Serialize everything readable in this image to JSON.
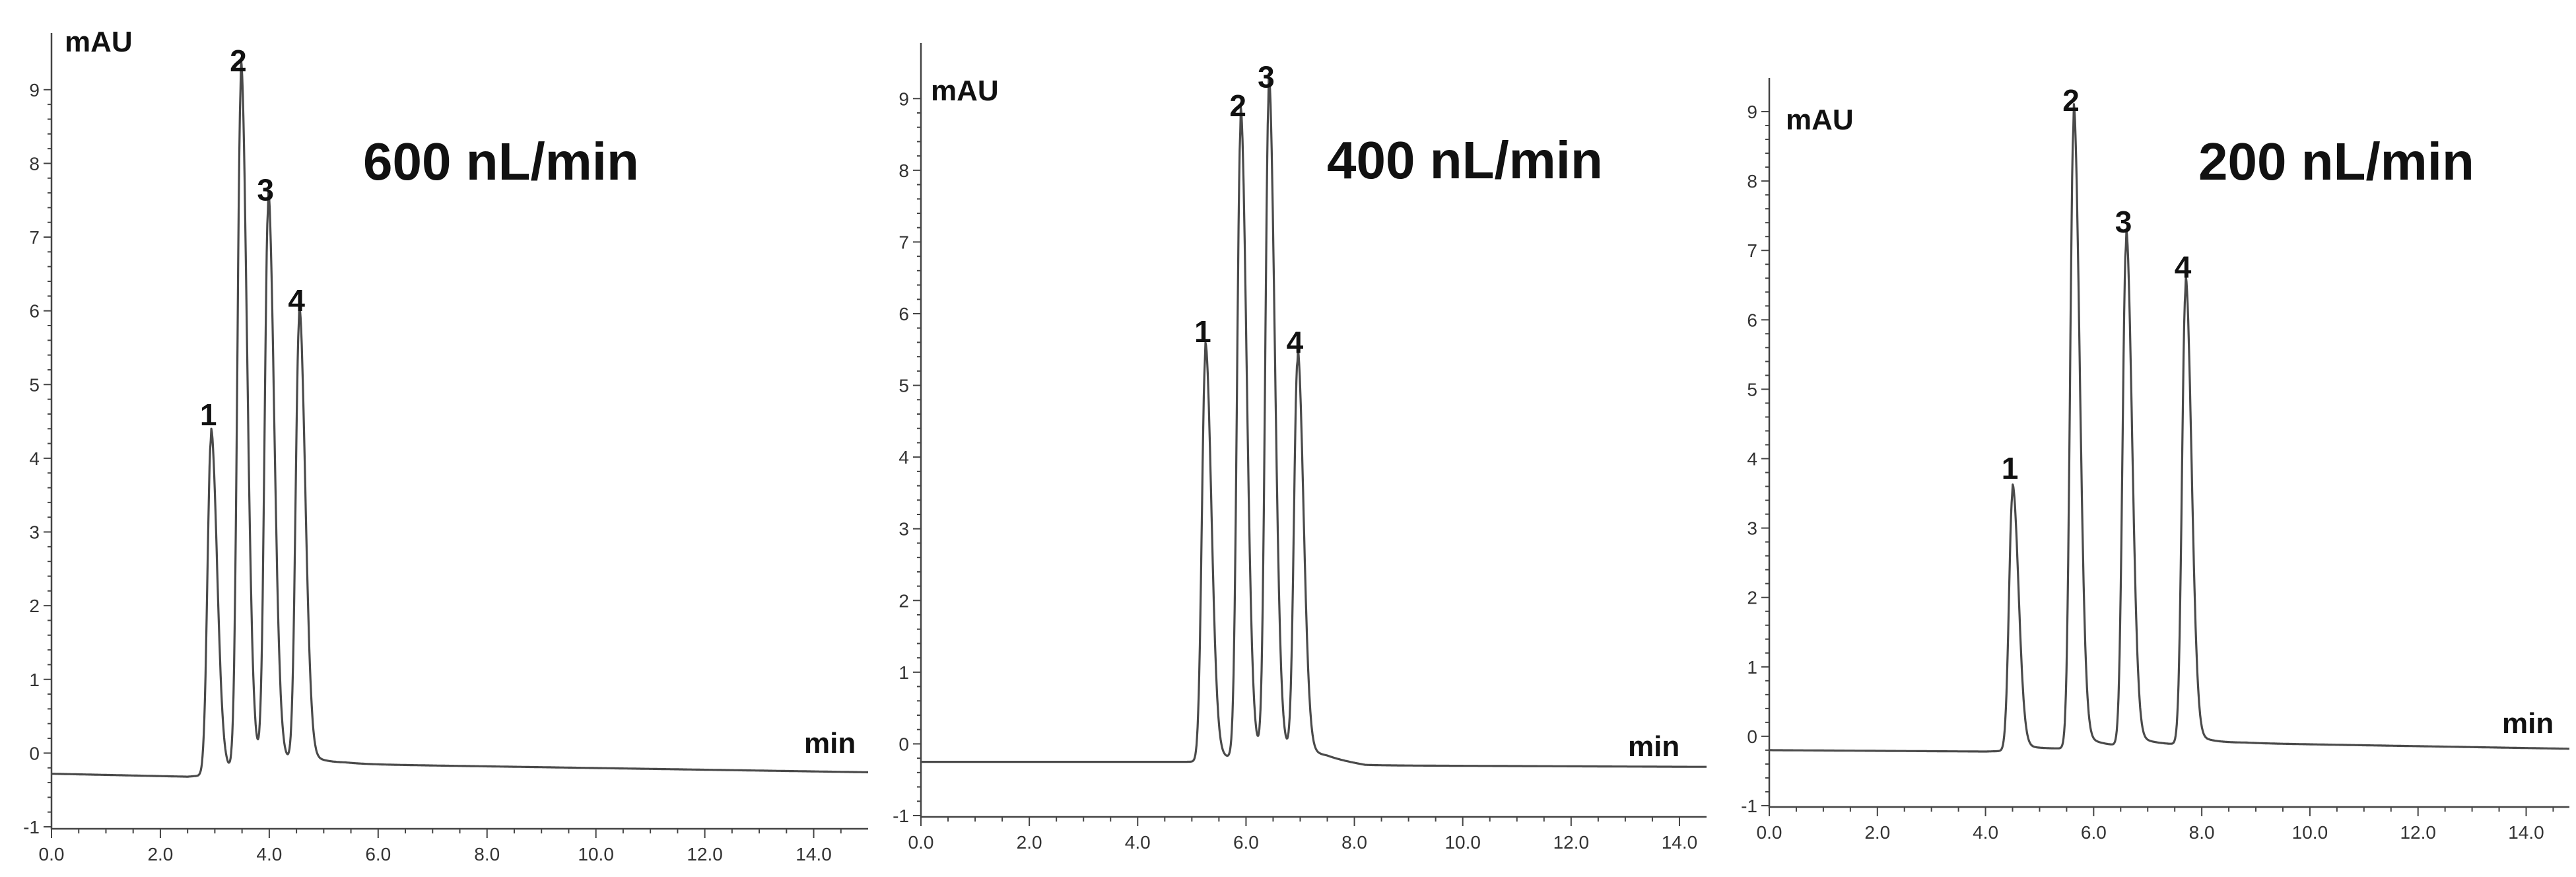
{
  "chart_data": [
    {
      "type": "line",
      "title": "600 nL/min",
      "xlabel": "min",
      "ylabel": "mAU",
      "xlim": [
        0,
        15
      ],
      "ylim": [
        -1,
        9.5
      ],
      "x_ticks": [
        "0.0",
        "2.0",
        "4.0",
        "6.0",
        "8.0",
        "10.0",
        "12.0",
        "14.0"
      ],
      "y_ticks": [
        "-1",
        "0",
        "1",
        "2",
        "3",
        "4",
        "5",
        "6",
        "7",
        "8",
        "9"
      ],
      "grid": false,
      "baseline": [
        [
          0,
          -0.28
        ],
        [
          2.5,
          -0.32
        ],
        [
          4.8,
          -0.18
        ],
        [
          5.4,
          -0.15
        ],
        [
          15,
          -0.26
        ]
      ],
      "peaks": [
        {
          "label": "1",
          "x": 2.93,
          "y": 4.25
        },
        {
          "label": "2",
          "x": 3.48,
          "y": 9.05
        },
        {
          "label": "3",
          "x": 3.98,
          "y": 7.3
        },
        {
          "label": "4",
          "x": 4.55,
          "y": 5.8
        }
      ]
    },
    {
      "type": "line",
      "title": "400 nL/min",
      "xlabel": "min",
      "ylabel": "mAU",
      "xlim": [
        0,
        14.5
      ],
      "ylim": [
        -1,
        9.5
      ],
      "x_ticks": [
        "0.0",
        "2.0",
        "4.0",
        "6.0",
        "8.0",
        "10.0",
        "12.0",
        "14.0"
      ],
      "y_ticks": [
        "-1",
        "0",
        "1",
        "2",
        "3",
        "4",
        "5",
        "6",
        "7",
        "8",
        "9"
      ],
      "grid": false,
      "baseline": [
        [
          0,
          -0.25
        ],
        [
          4.9,
          -0.25
        ],
        [
          7.5,
          -0.22
        ],
        [
          8.2,
          -0.3
        ],
        [
          14.2,
          -0.32
        ]
      ],
      "peaks": [
        {
          "label": "1",
          "x": 5.25,
          "y": 5.4
        },
        {
          "label": "2",
          "x": 5.9,
          "y": 8.55
        },
        {
          "label": "3",
          "x": 6.42,
          "y": 8.95
        },
        {
          "label": "4",
          "x": 6.95,
          "y": 5.25
        }
      ]
    },
    {
      "type": "line",
      "title": "200 nL/min",
      "xlabel": "min",
      "ylabel": "mAU",
      "xlim": [
        0,
        14.8
      ],
      "ylim": [
        -1,
        9.2
      ],
      "x_ticks": [
        "0.0",
        "2.0",
        "4.0",
        "6.0",
        "8.0",
        "10.0",
        "12.0",
        "14.0"
      ],
      "y_ticks": [
        "-1",
        "0",
        "1",
        "2",
        "3",
        "4",
        "5",
        "6",
        "7",
        "8",
        "9"
      ],
      "grid": false,
      "baseline": [
        [
          0,
          -0.2
        ],
        [
          4.0,
          -0.22
        ],
        [
          8.8,
          -0.1
        ],
        [
          14.8,
          -0.18
        ]
      ],
      "peaks": [
        {
          "label": "1",
          "x": 4.5,
          "y": 3.5
        },
        {
          "label": "2",
          "x": 5.63,
          "y": 8.8
        },
        {
          "label": "3",
          "x": 6.6,
          "y": 7.05
        },
        {
          "label": "4",
          "x": 7.7,
          "y": 6.4
        }
      ]
    }
  ]
}
